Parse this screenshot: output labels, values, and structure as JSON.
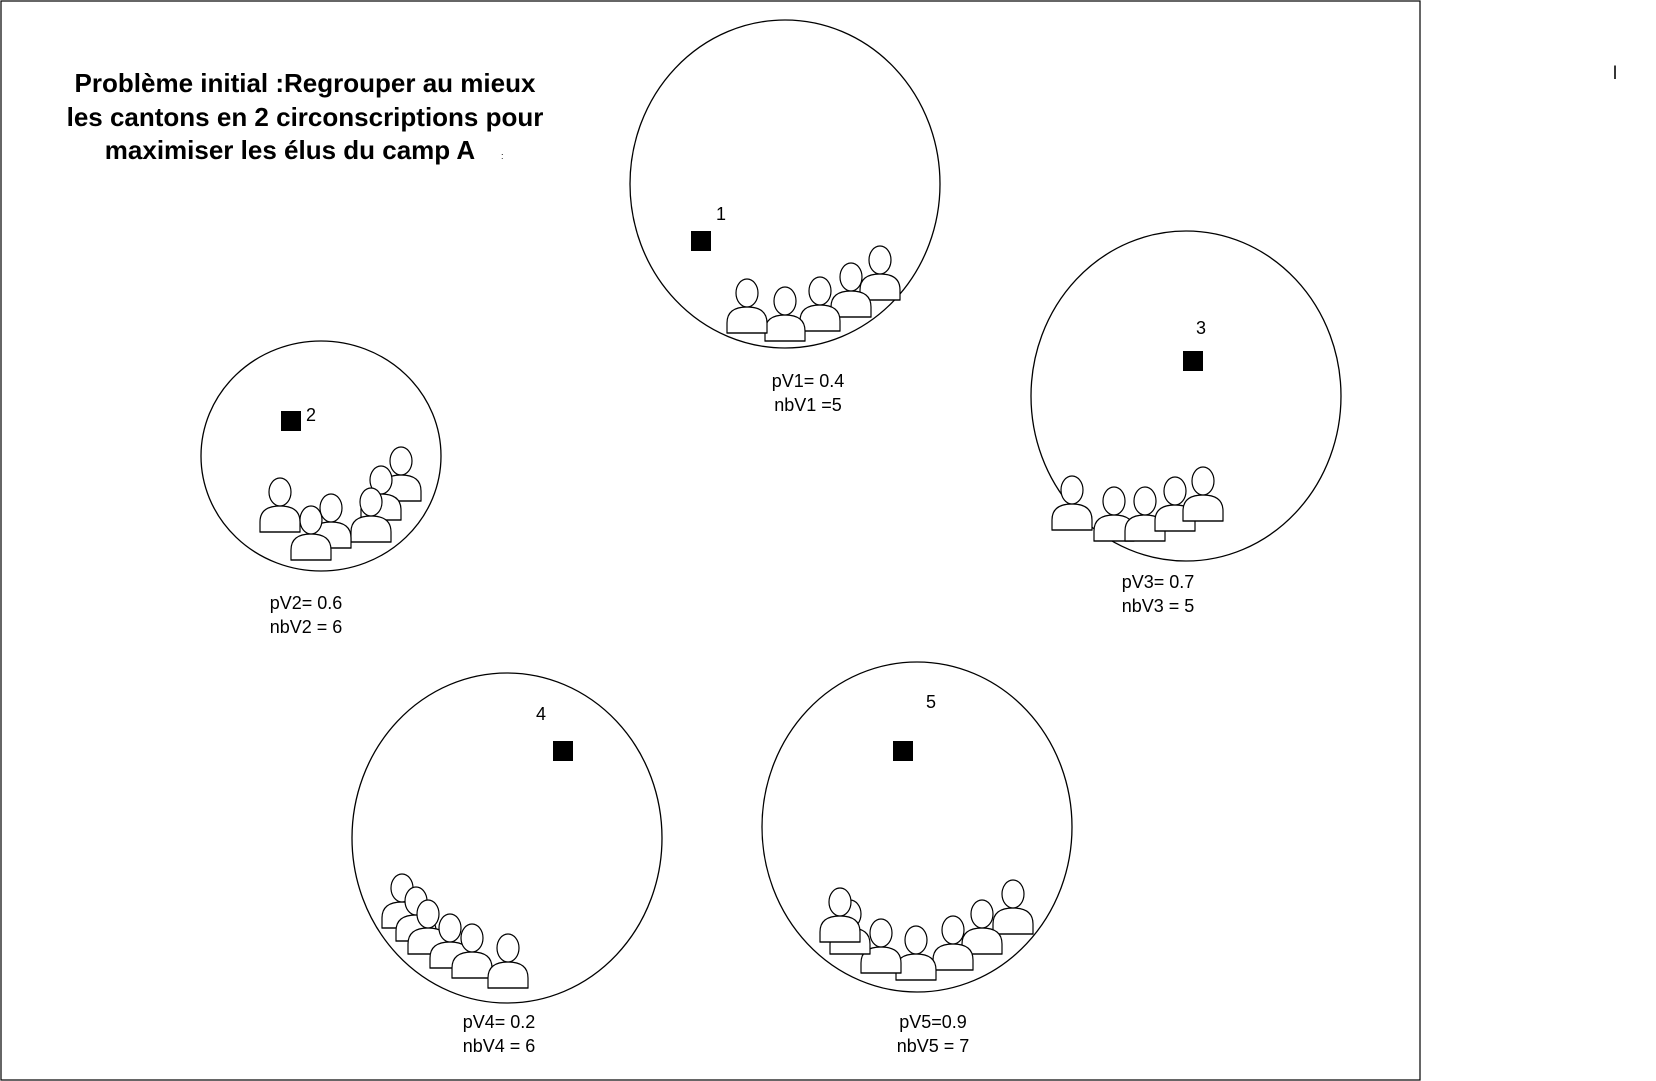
{
  "title": {
    "lines": [
      "Problème initial :Regrouper au mieux",
      "les cantons en 2 circonscriptions pour",
      "maximiser les élus du camp A"
    ],
    "suffix": ":"
  },
  "corner_mark": "l",
  "colors": {
    "ink": "#000000",
    "background": "#ffffff"
  },
  "cantons": [
    {
      "id": "canton-1",
      "number": "1",
      "stat_p": "pV1= 0.4",
      "stat_nb": "nbV1 =5",
      "icon": "ballot-box-icon",
      "voters": 5
    },
    {
      "id": "canton-2",
      "number": "2",
      "stat_p": "pV2= 0.6",
      "stat_nb": "nbV2 = 6",
      "icon": "ballot-box-icon",
      "voters": 6
    },
    {
      "id": "canton-3",
      "number": "3",
      "stat_p": "pV3= 0.7",
      "stat_nb": "nbV3 = 5",
      "icon": "ballot-box-icon",
      "voters": 5
    },
    {
      "id": "canton-4",
      "number": "4",
      "stat_p": "pV4= 0.2",
      "stat_nb": "nbV4 = 6",
      "icon": "ballot-box-icon",
      "voters": 6
    },
    {
      "id": "canton-5",
      "number": "5",
      "stat_p": "pV5=0.9",
      "stat_nb": "nbV5 = 7",
      "icon": "ballot-box-icon",
      "voters": 7
    }
  ]
}
